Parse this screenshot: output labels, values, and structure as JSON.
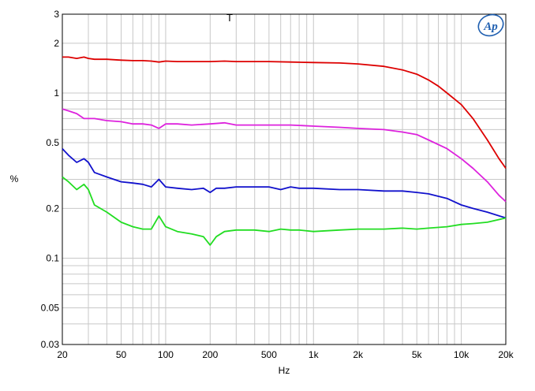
{
  "chart_data": {
    "type": "line",
    "title": "T",
    "xlabel": "Hz",
    "ylabel": "%",
    "xscale": "log",
    "yscale": "log",
    "xlim": [
      20,
      20000
    ],
    "ylim": [
      0.03,
      3
    ],
    "grid": true,
    "legend": "none",
    "x_tick_labels": [
      "20",
      "50",
      "100",
      "200",
      "500",
      "1k",
      "2k",
      "5k",
      "10k",
      "20k"
    ],
    "x_tick_values": [
      20,
      50,
      100,
      200,
      500,
      1000,
      2000,
      5000,
      10000,
      20000
    ],
    "y_tick_labels": [
      "3",
      "2",
      "1",
      "0.5",
      "0.2",
      "0.1",
      "0.05",
      "0.03"
    ],
    "y_tick_values": [
      3,
      2,
      1,
      0.5,
      0.2,
      0.1,
      0.05,
      0.03
    ],
    "series": [
      {
        "color": "#dd0000",
        "x": [
          20,
          22,
          25,
          28,
          30,
          33,
          40,
          50,
          60,
          70,
          80,
          90,
          100,
          120,
          150,
          200,
          250,
          300,
          500,
          700,
          1000,
          1500,
          2000,
          3000,
          4000,
          5000,
          6000,
          7000,
          8000,
          10000,
          12000,
          15000,
          18000,
          20000
        ],
        "y": [
          1.65,
          1.65,
          1.62,
          1.65,
          1.62,
          1.6,
          1.6,
          1.58,
          1.57,
          1.57,
          1.56,
          1.54,
          1.56,
          1.55,
          1.55,
          1.55,
          1.56,
          1.55,
          1.55,
          1.54,
          1.53,
          1.52,
          1.5,
          1.45,
          1.38,
          1.3,
          1.2,
          1.1,
          1.0,
          0.85,
          0.7,
          0.52,
          0.4,
          0.35
        ]
      },
      {
        "color": "#dd22dd",
        "x": [
          20,
          22,
          25,
          28,
          30,
          33,
          40,
          50,
          60,
          70,
          80,
          90,
          100,
          120,
          150,
          200,
          250,
          300,
          500,
          700,
          1000,
          1500,
          2000,
          3000,
          4000,
          5000,
          6000,
          8000,
          10000,
          12000,
          15000,
          18000,
          20000
        ],
        "y": [
          0.8,
          0.78,
          0.75,
          0.7,
          0.7,
          0.7,
          0.68,
          0.67,
          0.65,
          0.65,
          0.64,
          0.61,
          0.65,
          0.65,
          0.64,
          0.65,
          0.66,
          0.64,
          0.64,
          0.64,
          0.63,
          0.62,
          0.61,
          0.6,
          0.58,
          0.56,
          0.52,
          0.46,
          0.4,
          0.35,
          0.29,
          0.24,
          0.22
        ]
      },
      {
        "color": "#1111cc",
        "x": [
          20,
          22,
          25,
          28,
          30,
          33,
          40,
          50,
          60,
          70,
          80,
          90,
          100,
          120,
          150,
          180,
          200,
          220,
          250,
          300,
          500,
          600,
          700,
          800,
          1000,
          1500,
          2000,
          3000,
          4000,
          5000,
          6000,
          8000,
          10000,
          12000,
          15000,
          20000
        ],
        "y": [
          0.46,
          0.42,
          0.38,
          0.4,
          0.38,
          0.33,
          0.31,
          0.29,
          0.285,
          0.28,
          0.27,
          0.3,
          0.27,
          0.265,
          0.26,
          0.265,
          0.25,
          0.265,
          0.265,
          0.27,
          0.27,
          0.26,
          0.27,
          0.265,
          0.265,
          0.26,
          0.26,
          0.255,
          0.255,
          0.25,
          0.245,
          0.23,
          0.21,
          0.2,
          0.19,
          0.175
        ]
      },
      {
        "color": "#22dd22",
        "x": [
          20,
          22,
          25,
          28,
          30,
          33,
          40,
          50,
          60,
          70,
          80,
          90,
          100,
          120,
          150,
          180,
          200,
          220,
          250,
          300,
          400,
          500,
          600,
          700,
          800,
          1000,
          1500,
          2000,
          3000,
          4000,
          5000,
          6000,
          8000,
          10000,
          12000,
          15000,
          20000
        ],
        "y": [
          0.31,
          0.29,
          0.26,
          0.28,
          0.26,
          0.21,
          0.19,
          0.165,
          0.155,
          0.15,
          0.15,
          0.18,
          0.155,
          0.145,
          0.14,
          0.135,
          0.12,
          0.135,
          0.145,
          0.148,
          0.148,
          0.145,
          0.15,
          0.148,
          0.148,
          0.145,
          0.148,
          0.15,
          0.15,
          0.152,
          0.15,
          0.152,
          0.155,
          0.16,
          0.162,
          0.165,
          0.175
        ]
      }
    ]
  },
  "logo": {
    "text": "Ap",
    "color": "#1f5fb0"
  }
}
